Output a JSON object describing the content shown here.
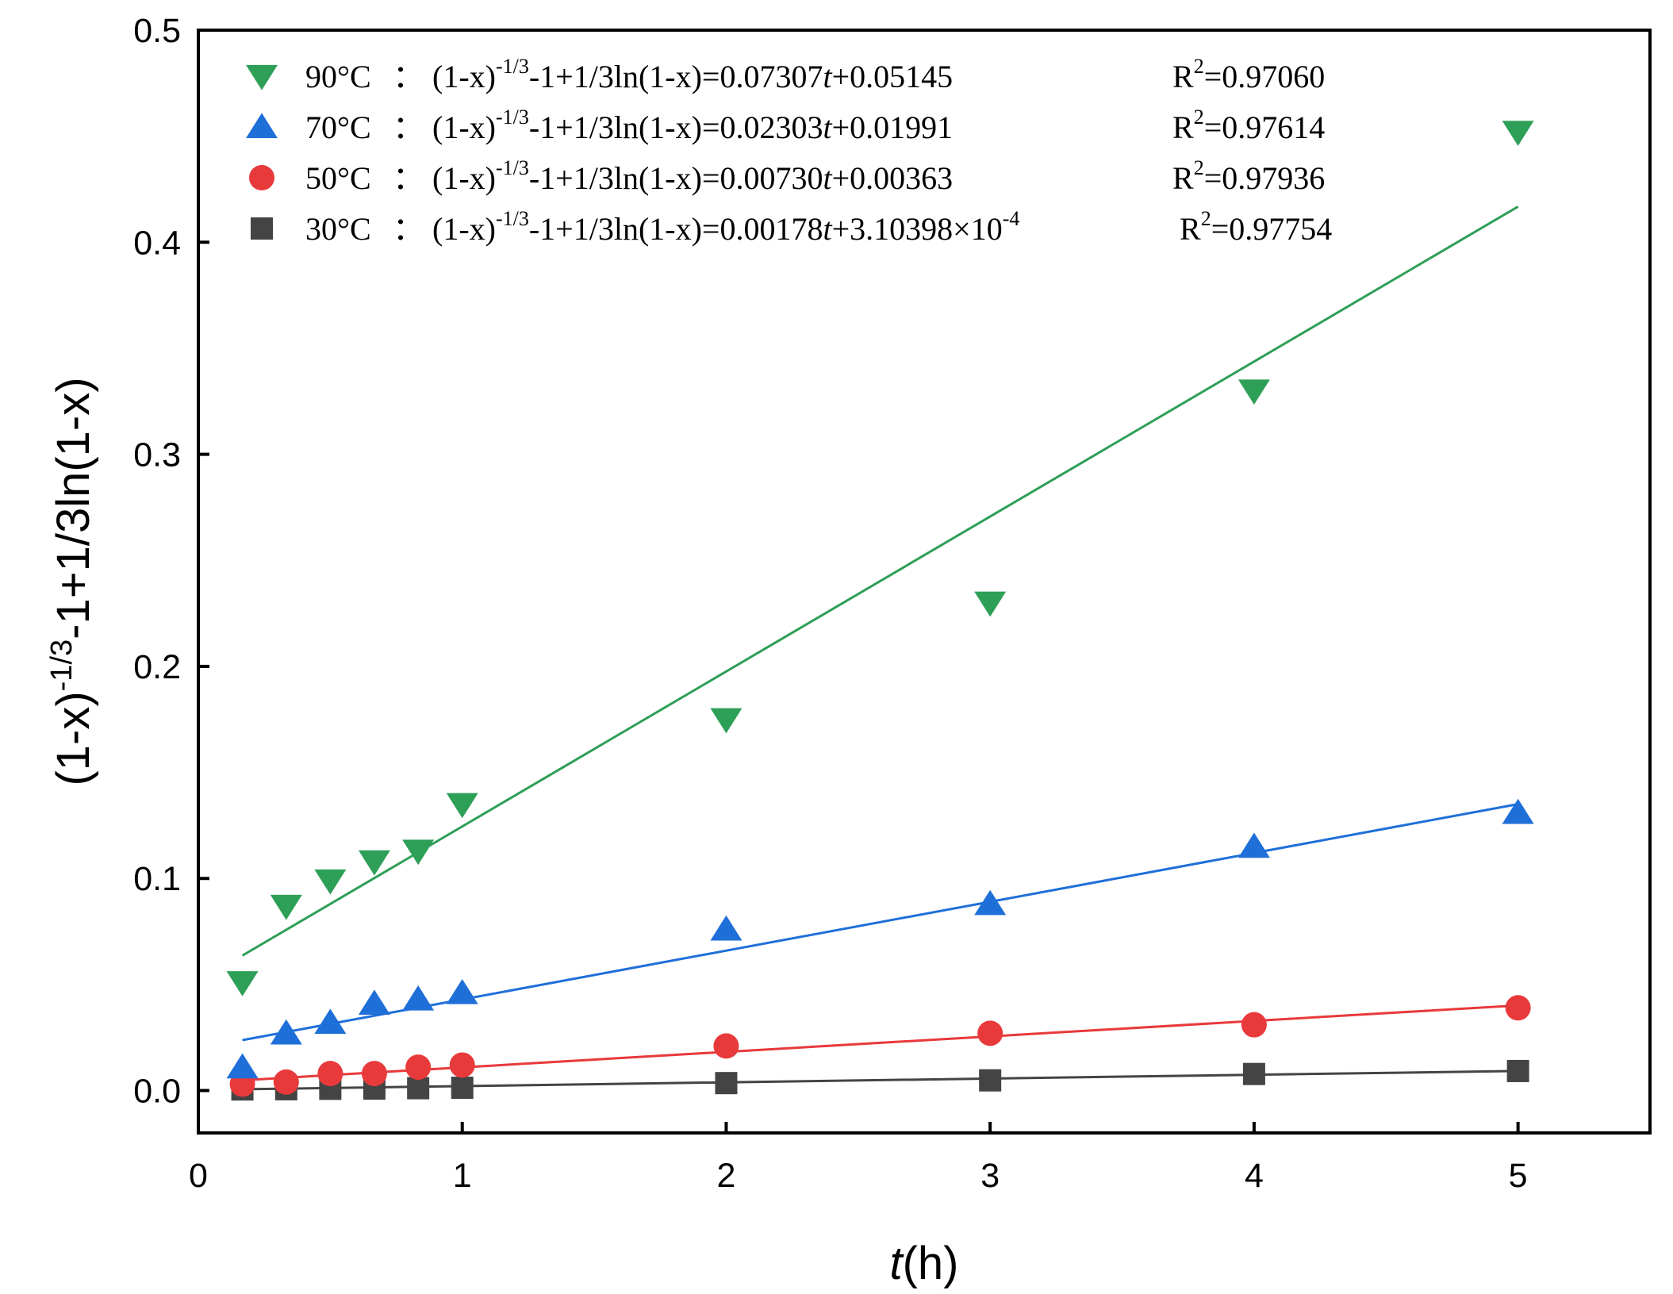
{
  "chart_data": {
    "type": "scatter",
    "title": "",
    "xlabel": {
      "italic": "t",
      "rest": "(h)"
    },
    "ylabel": {
      "base": "(1-x)",
      "sup": "-1/3",
      "rest": "-1+1/3ln(1-x)"
    },
    "xlim": [
      0,
      5.5
    ],
    "ylim": [
      -0.02,
      0.5
    ],
    "x_ticks": [
      0,
      1,
      2,
      3,
      4,
      5
    ],
    "x_tick_labels": [
      "0",
      "1",
      "2",
      "3",
      "4",
      "5"
    ],
    "y_ticks": [
      0.0,
      0.1,
      0.2,
      0.3,
      0.4,
      0.5
    ],
    "y_tick_labels": [
      "0.0",
      "0.1",
      "0.2",
      "0.3",
      "0.4",
      "0.5"
    ],
    "grid": false,
    "legend_position": "top-left",
    "series": [
      {
        "name": "90°C",
        "color": "#2e9f57",
        "marker": "triangle-down",
        "x": [
          0.167,
          0.333,
          0.5,
          0.667,
          0.833,
          1,
          2,
          3,
          4,
          5
        ],
        "y": [
          0.051,
          0.087,
          0.099,
          0.108,
          0.113,
          0.135,
          0.175,
          0.23,
          0.33,
          0.452
        ],
        "fit": {
          "slope": 0.07307,
          "intercept": 0.05145
        },
        "equation": {
          "label": "90°C",
          "sep": "：",
          "base": "(1-x)",
          "sup": "-1/3",
          "mid": "-1+1/3ln(1-x)=0.07307",
          "t": "t",
          "tail": "+0.05145",
          "tail_sup": "",
          "r_base": "R",
          "r_sup": "2",
          "r_val": "=0.97060"
        }
      },
      {
        "name": "70°C",
        "color": "#1f6fd9",
        "marker": "triangle-up",
        "x": [
          0.167,
          0.333,
          0.5,
          0.667,
          0.833,
          1,
          2,
          3,
          4,
          5
        ],
        "y": [
          0.011,
          0.027,
          0.032,
          0.041,
          0.043,
          0.046,
          0.076,
          0.088,
          0.115,
          0.131
        ],
        "fit": {
          "slope": 0.02303,
          "intercept": 0.01991
        },
        "equation": {
          "label": "70°C",
          "sep": "：",
          "base": "(1-x)",
          "sup": "-1/3",
          "mid": "-1+1/3ln(1-x)=0.02303",
          "t": "t",
          "tail": "+0.01991",
          "tail_sup": "",
          "r_base": "R",
          "r_sup": "2",
          "r_val": "=0.97614"
        }
      },
      {
        "name": "50°C",
        "color": "#e8393b",
        "marker": "circle",
        "x": [
          0.167,
          0.333,
          0.5,
          0.667,
          0.833,
          1,
          2,
          3,
          4,
          5
        ],
        "y": [
          0.003,
          0.004,
          0.008,
          0.008,
          0.011,
          0.012,
          0.021,
          0.027,
          0.031,
          0.039
        ],
        "fit": {
          "slope": 0.0073,
          "intercept": 0.00363
        },
        "equation": {
          "label": "50°C",
          "sep": "：",
          "base": "(1-x)",
          "sup": "-1/3",
          "mid": "-1+1/3ln(1-x)=0.00730",
          "t": "t",
          "tail": "+0.00363",
          "tail_sup": "",
          "r_base": "R",
          "r_sup": "2",
          "r_val": "=0.97936"
        }
      },
      {
        "name": "30°C",
        "color": "#444444",
        "marker": "square",
        "x": [
          0.167,
          0.333,
          0.5,
          0.667,
          0.833,
          1,
          2,
          3,
          4,
          5
        ],
        "y": [
          0.0005,
          0.0006,
          0.0008,
          0.0009,
          0.0011,
          0.0013,
          0.0035,
          0.0048,
          0.0078,
          0.0092
        ],
        "fit": {
          "slope": 0.00178,
          "intercept": 0.000310398
        },
        "equation": {
          "label": "30°C",
          "sep": "：",
          "base": "(1-x)",
          "sup": "-1/3",
          "mid": "-1+1/3ln(1-x)=0.00178",
          "t": "t",
          "tail": "+3.10398×10",
          "tail_sup": "-4",
          "r_base": "R",
          "r_sup": "2",
          "r_val": "=0.97754"
        }
      }
    ]
  }
}
